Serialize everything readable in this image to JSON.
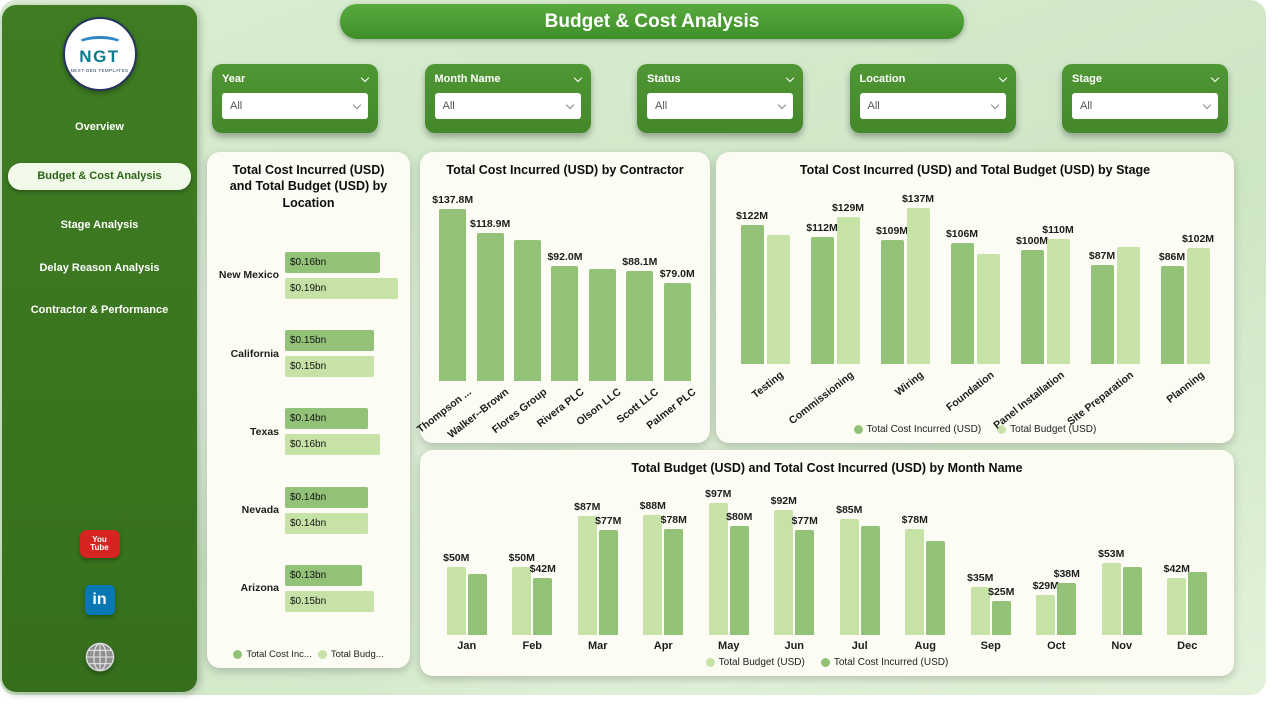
{
  "header": {
    "title": "Budget & Cost Analysis"
  },
  "colors": {
    "cost": "#92c178",
    "budget": "#c6e2a6",
    "sidebar": "#3f7d23",
    "accent": "#4c9a33",
    "card_bg": "#fcfcf4",
    "page_bg": "#d8ecd1"
  },
  "sidebar": {
    "logo": {
      "text": "NGT",
      "subtext": "NEXT-GEN TEMPLATES"
    },
    "items": [
      {
        "label": "Overview",
        "active": false
      },
      {
        "label": "Budget & Cost Analysis",
        "active": true
      },
      {
        "label": "Stage Analysis",
        "active": false
      },
      {
        "label": "Delay Reason Analysis",
        "active": false
      },
      {
        "label": "Contractor & Performance",
        "active": false
      }
    ],
    "social": {
      "youtube_line1": "You",
      "youtube_line2": "Tube",
      "linkedin": "in"
    }
  },
  "filters": [
    {
      "label": "Year",
      "value": "All"
    },
    {
      "label": "Month Name",
      "value": "All"
    },
    {
      "label": "Status",
      "value": "All"
    },
    {
      "label": "Location",
      "value": "All"
    },
    {
      "label": "Stage",
      "value": "All"
    }
  ],
  "chart_data": [
    {
      "type": "bar",
      "orientation": "horizontal",
      "title": "Total Cost Incurred (USD) and Total Budget (USD) by Location",
      "categories": [
        "New Mexico",
        "California",
        "Texas",
        "Nevada",
        "Arizona"
      ],
      "series": [
        {
          "name": "Total Cost Inc...",
          "color_key": "cost",
          "values": [
            0.16,
            0.15,
            0.14,
            0.14,
            0.13
          ],
          "labels": [
            "$0.16bn",
            "$0.15bn",
            "$0.14bn",
            "$0.14bn",
            "$0.13bn"
          ]
        },
        {
          "name": "Total Budg...",
          "color_key": "budget",
          "values": [
            0.19,
            0.15,
            0.16,
            0.14,
            0.15
          ],
          "labels": [
            "$0.19bn",
            "$0.15bn",
            "$0.16bn",
            "$0.14bn",
            "$0.15bn"
          ]
        }
      ],
      "xmax": 0.19,
      "legend_position": "bottom",
      "grid": false
    },
    {
      "type": "bar",
      "orientation": "vertical",
      "rotate_labels": true,
      "title": "Total Cost Incurred (USD) by Contractor",
      "categories": [
        "Thompson ...",
        "Walker--Brown",
        "Flores Group",
        "Rivera PLC",
        "Olson LLC",
        "Scott LLC",
        "Palmer PLC"
      ],
      "series": [
        {
          "name": "Total Cost Incurred (USD)",
          "color_key": "cost",
          "values": [
            137.8,
            118.9,
            113.0,
            92.0,
            90.0,
            88.1,
            79.0
          ],
          "labels": [
            "$137.8M",
            "$118.9M",
            "",
            "$92.0M",
            "",
            "$88.1M",
            "$79.0M"
          ]
        }
      ],
      "ymax": 158,
      "grid": false
    },
    {
      "type": "bar",
      "orientation": "vertical",
      "rotate_labels": true,
      "title": "Total Cost Incurred (USD) and Total Budget (USD) by Stage",
      "categories": [
        "Testing",
        "Commissioning",
        "Wiring",
        "Foundation",
        "Panel Installation",
        "Site Preparation",
        "Planning"
      ],
      "series": [
        {
          "name": "Total Cost Incurred (USD)",
          "color_key": "cost",
          "values": [
            122,
            112,
            109,
            106,
            100,
            87,
            86
          ],
          "labels": [
            "$122M",
            "$112M",
            "$109M",
            "$106M",
            "$100M",
            "$87M",
            "$86M"
          ]
        },
        {
          "name": "Total Budget (USD)",
          "color_key": "budget",
          "values": [
            113,
            129,
            137,
            97,
            110,
            103,
            102
          ],
          "labels": [
            "",
            "$129M",
            "$137M",
            "",
            "$110M",
            "",
            "$102M"
          ]
        }
      ],
      "ymax": 158,
      "legend_position": "bottom",
      "grid": false
    },
    {
      "type": "bar",
      "orientation": "vertical",
      "title": "Total Budget (USD) and Total Cost Incurred (USD) by Month Name",
      "categories": [
        "Jan",
        "Feb",
        "Mar",
        "Apr",
        "May",
        "Jun",
        "Jul",
        "Aug",
        "Sep",
        "Oct",
        "Nov",
        "Dec"
      ],
      "series": [
        {
          "name": "Total Budget (USD)",
          "color_key": "budget",
          "values": [
            50,
            50,
            87,
            88,
            97,
            92,
            85,
            78,
            35,
            29,
            53,
            42
          ],
          "labels": [
            "$50M",
            "$50M",
            "$87M",
            "$88M",
            "$97M",
            "$92M",
            "$85M",
            "$78M",
            "$35M",
            "$29M",
            "$53M",
            "$42M"
          ]
        },
        {
          "name": "Total Cost Incurred (USD)",
          "color_key": "cost",
          "values": [
            45,
            42,
            77,
            78,
            80,
            77,
            80,
            69,
            25,
            38,
            50,
            46
          ],
          "labels": [
            "",
            "$42M",
            "$77M",
            "$78M",
            "$80M",
            "$77M",
            "",
            "",
            "$25M",
            "$38M",
            "",
            ""
          ]
        }
      ],
      "ymax": 112,
      "legend_position": "bottom",
      "grid": false
    }
  ]
}
